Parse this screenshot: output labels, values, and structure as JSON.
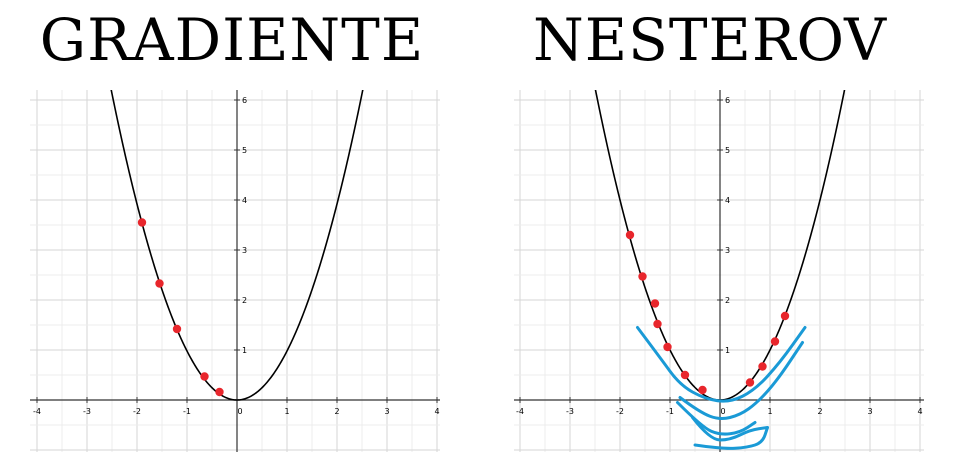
{
  "chart_data": [
    {
      "type": "line",
      "title": "GRADIENTE",
      "xlim": [
        -4,
        4
      ],
      "ylim": [
        0,
        6
      ],
      "x_ticks": [
        -4,
        -3,
        -2,
        -1,
        0,
        1,
        2,
        3,
        4
      ],
      "y_ticks": [
        1,
        2,
        3,
        4,
        5,
        6
      ],
      "grid": true,
      "series": [
        {
          "kind": "curve",
          "function": "y = x^2 * 0.98",
          "color": "#000000"
        },
        {
          "kind": "points",
          "color": "#e8262c",
          "x": [
            -1.9,
            -1.55,
            -1.2,
            -0.65,
            -0.35
          ],
          "y": [
            3.55,
            2.33,
            1.42,
            0.47,
            0.16
          ]
        }
      ]
    },
    {
      "type": "line",
      "title": "NESTEROV",
      "xlim": [
        -4,
        4
      ],
      "ylim": [
        0,
        6
      ],
      "x_ticks": [
        -4,
        -3,
        -2,
        -1,
        0,
        1,
        2,
        3,
        4
      ],
      "y_ticks": [
        1,
        2,
        3,
        4,
        5,
        6
      ],
      "grid": true,
      "series": [
        {
          "kind": "curve",
          "function": "y = x^2",
          "color": "#000000"
        },
        {
          "kind": "points",
          "color": "#e8262c",
          "x": [
            -1.8,
            -1.55,
            -1.3,
            -1.25,
            -1.05,
            -0.7,
            -0.35,
            0.6,
            0.85,
            1.1,
            1.3
          ],
          "y": [
            3.3,
            2.47,
            1.93,
            1.52,
            1.06,
            0.5,
            0.2,
            0.35,
            0.67,
            1.17,
            1.68
          ]
        },
        {
          "kind": "annotation-strokes",
          "color": "#1a9ad6",
          "strokes": [
            [
              [
                -1.65,
                1.45
              ],
              [
                -1.2,
                0.85
              ],
              [
                -0.8,
                0.3
              ],
              [
                -0.3,
                0.02
              ],
              [
                0.2,
                -0.05
              ],
              [
                0.7,
                0.2
              ],
              [
                1.2,
                0.75
              ],
              [
                1.7,
                1.45
              ]
            ],
            [
              [
                -0.8,
                0.05
              ],
              [
                -0.4,
                -0.25
              ],
              [
                0.0,
                -0.4
              ],
              [
                0.4,
                -0.3
              ],
              [
                0.75,
                -0.05
              ],
              [
                1.15,
                0.4
              ],
              [
                1.65,
                1.15
              ]
            ],
            [
              [
                -0.85,
                -0.05
              ],
              [
                -0.35,
                -0.55
              ],
              [
                0.0,
                -0.7
              ],
              [
                0.4,
                -0.65
              ],
              [
                0.7,
                -0.45
              ]
            ],
            [
              [
                -0.55,
                -0.35
              ],
              [
                -0.2,
                -0.8
              ],
              [
                0.2,
                -0.8
              ],
              [
                0.6,
                -0.6
              ],
              [
                0.95,
                -0.55
              ]
            ],
            [
              [
                -0.5,
                -0.9
              ],
              [
                0.05,
                -0.98
              ],
              [
                0.55,
                -0.95
              ],
              [
                0.85,
                -0.85
              ],
              [
                0.95,
                -0.55
              ]
            ]
          ]
        }
      ]
    }
  ]
}
